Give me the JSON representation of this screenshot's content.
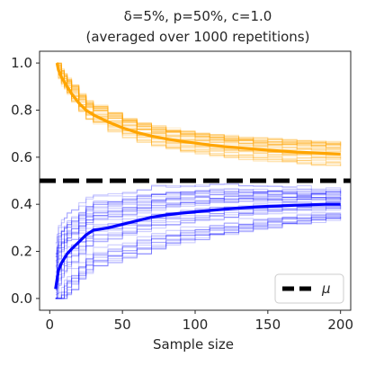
{
  "chart_data": {
    "type": "line",
    "title_line1": "δ=5%, p=50%, c=1.0",
    "title_line2": "(averaged over 1000 repetitions)",
    "xlabel": "Sample size",
    "ylabel": "",
    "xlim": [
      -7,
      207
    ],
    "ylim": [
      -0.05,
      1.05
    ],
    "xticks": [
      0,
      50,
      100,
      150,
      200
    ],
    "yticks": [
      0.0,
      0.2,
      0.4,
      0.6,
      0.8,
      1.0
    ],
    "xtick_labels": [
      "0",
      "50",
      "100",
      "150",
      "200"
    ],
    "ytick_labels": [
      "0.0",
      "0.2",
      "0.4",
      "0.6",
      "0.8",
      "1.0"
    ],
    "grid": false,
    "legend": {
      "position": "bottom-right",
      "label": "μ"
    },
    "mu": 0.5,
    "series": [
      {
        "role": "upper-bound-average",
        "color": "#FFA500",
        "x": [
          5,
          6,
          8,
          10,
          12,
          15,
          20,
          25,
          30,
          40,
          50,
          60,
          70,
          80,
          90,
          100,
          110,
          120,
          130,
          140,
          150,
          160,
          170,
          180,
          190,
          200
        ],
        "y": [
          1.0,
          0.97,
          0.94,
          0.92,
          0.9,
          0.87,
          0.83,
          0.8,
          0.78,
          0.75,
          0.725,
          0.705,
          0.69,
          0.678,
          0.668,
          0.66,
          0.652,
          0.645,
          0.64,
          0.635,
          0.63,
          0.626,
          0.622,
          0.619,
          0.616,
          0.613
        ]
      },
      {
        "role": "lower-bound-average",
        "color": "#0000FF",
        "x": [
          4,
          5,
          6,
          8,
          10,
          12,
          15,
          20,
          25,
          30,
          40,
          50,
          60,
          70,
          80,
          90,
          100,
          110,
          120,
          130,
          140,
          150,
          160,
          170,
          180,
          190,
          200
        ],
        "y": [
          0.04,
          0.08,
          0.12,
          0.15,
          0.17,
          0.19,
          0.21,
          0.24,
          0.27,
          0.29,
          0.3,
          0.315,
          0.33,
          0.345,
          0.355,
          0.362,
          0.368,
          0.374,
          0.379,
          0.384,
          0.388,
          0.391,
          0.394,
          0.396,
          0.398,
          0.4,
          0.4
        ]
      }
    ],
    "upper_band": {
      "color": "#FFA500",
      "count": 45,
      "center": [
        1.0,
        0.97,
        0.94,
        0.92,
        0.9,
        0.87,
        0.83,
        0.8,
        0.78,
        0.75,
        0.725,
        0.705,
        0.69,
        0.678,
        0.668,
        0.66,
        0.652,
        0.645,
        0.64,
        0.635,
        0.63,
        0.626,
        0.622,
        0.619,
        0.616,
        0.613
      ],
      "spread_start": 0.03,
      "spread_end": 0.05
    },
    "lower_band": {
      "color": "#0000FF",
      "count": 45,
      "center": [
        0.04,
        0.08,
        0.12,
        0.15,
        0.17,
        0.19,
        0.21,
        0.24,
        0.27,
        0.29,
        0.3,
        0.315,
        0.33,
        0.345,
        0.355,
        0.362,
        0.368,
        0.374,
        0.379,
        0.384,
        0.388,
        0.391,
        0.394,
        0.396,
        0.398,
        0.4,
        0.4
      ],
      "spread_start": 0.2,
      "spread_end": 0.06
    }
  }
}
